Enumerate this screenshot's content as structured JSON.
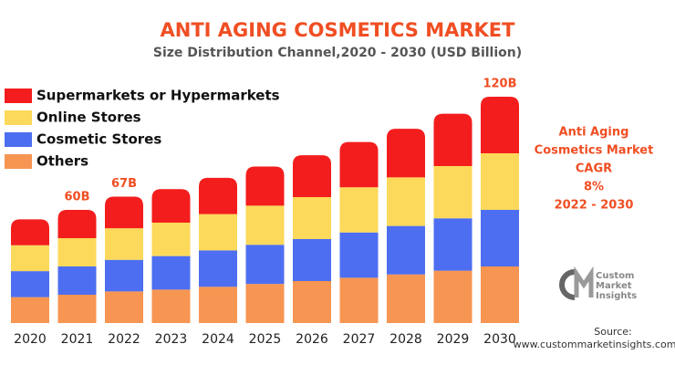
{
  "chart_data": {
    "type": "stacked_bar",
    "title": "ANTI AGING COSMETICS MARKET",
    "subtitle": "Size Distribution Channel,2020 - 2030 (USD Billion)",
    "categories": [
      "2020",
      "2021",
      "2022",
      "2023",
      "2024",
      "2025",
      "2026",
      "2027",
      "2028",
      "2029",
      "2030"
    ],
    "series": [
      {
        "name": "Others",
        "color": "#f79552",
        "values": [
          13.75,
          15,
          16.75,
          17.75,
          19.25,
          20.75,
          22.25,
          24,
          25.75,
          27.75,
          30
        ]
      },
      {
        "name": "Cosmetic Stores",
        "color": "#4d6ef0",
        "values": [
          13.75,
          15,
          16.75,
          17.75,
          19.25,
          20.75,
          22.25,
          24,
          25.75,
          27.75,
          30
        ]
      },
      {
        "name": "Online Stores",
        "color": "#fcd95a",
        "values": [
          13.75,
          15,
          16.75,
          17.75,
          19.25,
          20.75,
          22.25,
          24,
          25.75,
          27.75,
          30
        ]
      },
      {
        "name": "Supermarkets or Hypermarkets",
        "color": "#f31d1d",
        "values": [
          13.75,
          15,
          16.75,
          17.75,
          19.25,
          20.75,
          22.25,
          24,
          25.75,
          27.75,
          30
        ]
      }
    ],
    "ylim": [
      0,
      120
    ],
    "annotations": [
      {
        "category": "2021",
        "text": "60B"
      },
      {
        "category": "2022",
        "text": "67B"
      },
      {
        "category": "2030",
        "text": "120B"
      }
    ],
    "side_note": [
      "Anti Aging",
      "Cosmetics Market",
      "CAGR",
      "8%",
      "2022 - 2030"
    ],
    "logo": [
      "Custom",
      "Market",
      "Insights"
    ],
    "source": [
      "Source:",
      "www.custommarketinsights.com"
    ]
  }
}
